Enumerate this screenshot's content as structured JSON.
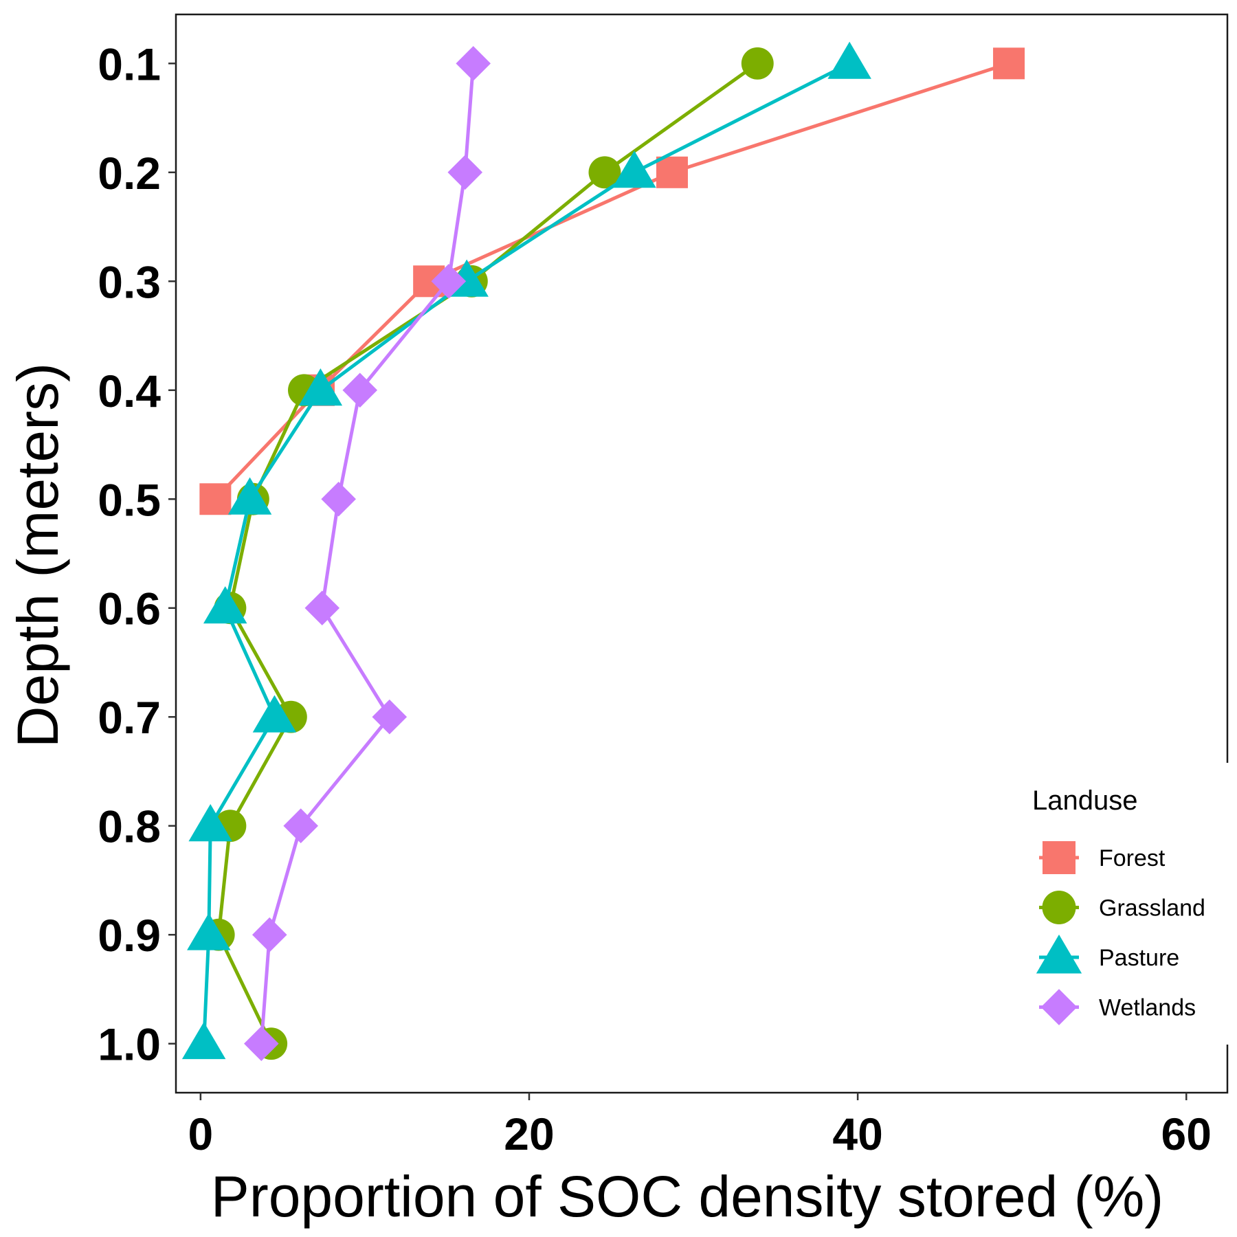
{
  "chart_data": {
    "type": "line",
    "xlabel": "Proportion of SOC density stored (%)",
    "ylabel": "Depth (meters)",
    "xlim": [
      -1.5,
      62.5
    ],
    "ylim": [
      1.045,
      0.055
    ],
    "x_ticks": [
      0,
      20,
      40,
      60
    ],
    "x_tick_labels": [
      "0",
      "20",
      "40",
      "60"
    ],
    "y_ticks": [
      0.1,
      0.2,
      0.3,
      0.4,
      0.5,
      0.6,
      0.7,
      0.8,
      0.9,
      1.0
    ],
    "y_tick_labels": [
      "0.1",
      "0.2",
      "0.3",
      "0.4",
      "0.5",
      "0.6",
      "0.7",
      "0.8",
      "0.9",
      "1.0"
    ],
    "grid": false,
    "legend": {
      "title": "Landuse",
      "position": "bottom-right"
    },
    "depths": [
      0.1,
      0.2,
      0.3,
      0.4,
      0.5,
      0.6,
      0.7,
      0.8,
      0.9,
      1.0
    ],
    "series": [
      {
        "name": "Forest",
        "color": "#F8766D",
        "marker": "square",
        "x": [
          49.2,
          28.7,
          13.9,
          7.2,
          0.9
        ],
        "y": [
          0.1,
          0.2,
          0.3,
          0.4,
          0.5
        ]
      },
      {
        "name": "Grassland",
        "color": "#7CAE00",
        "marker": "circle",
        "x": [
          33.9,
          24.6,
          16.5,
          6.3,
          3.2,
          1.8,
          5.5,
          1.8,
          1.1,
          4.3
        ],
        "y": [
          0.1,
          0.2,
          0.3,
          0.4,
          0.5,
          0.6,
          0.7,
          0.8,
          0.9,
          1.0
        ]
      },
      {
        "name": "Pasture",
        "color": "#00BFC4",
        "marker": "triangle",
        "x": [
          39.5,
          26.4,
          16.2,
          7.3,
          3.0,
          1.5,
          4.5,
          0.6,
          0.5,
          0.2
        ],
        "y": [
          0.1,
          0.2,
          0.3,
          0.4,
          0.5,
          0.6,
          0.7,
          0.8,
          0.9,
          1.0
        ]
      },
      {
        "name": "Wetlands",
        "color": "#C77CFF",
        "marker": "diamond",
        "x": [
          16.6,
          16.1,
          15.1,
          9.7,
          8.4,
          7.4,
          11.5,
          6.1,
          4.2,
          3.7
        ],
        "y": [
          0.1,
          0.2,
          0.3,
          0.4,
          0.5,
          0.6,
          0.7,
          0.8,
          0.9,
          1.0
        ]
      }
    ]
  }
}
